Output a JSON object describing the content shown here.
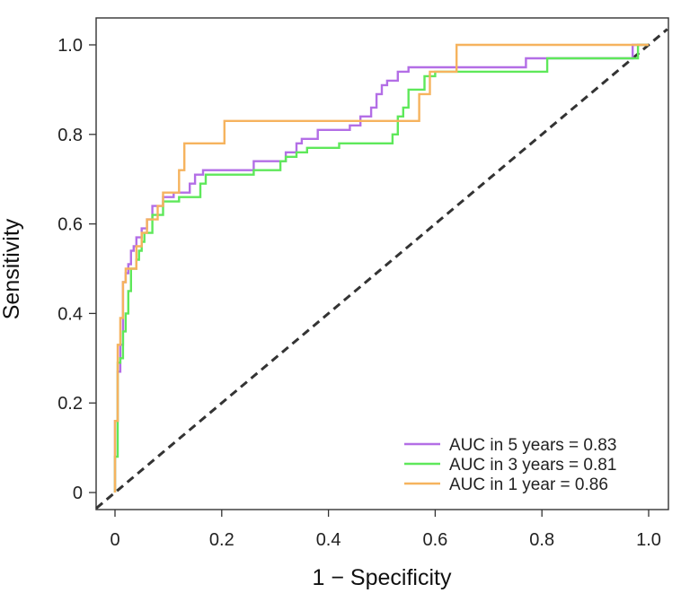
{
  "chart_data": {
    "type": "line",
    "title": "",
    "xlabel": "1 − Specificity",
    "ylabel": "Sensitivity",
    "xlim": [
      0,
      1
    ],
    "ylim": [
      0,
      1
    ],
    "xticks": [
      0,
      0.2,
      0.4,
      0.6,
      0.8,
      1.0
    ],
    "yticks": [
      0,
      0.2,
      0.4,
      0.6,
      0.8,
      1.0
    ],
    "xtick_labels": [
      "0",
      "0.2",
      "0.4",
      "0.6",
      "0.8",
      "1.0"
    ],
    "ytick_labels": [
      "0",
      "0.2",
      "0.4",
      "0.6",
      "0.8",
      "1.0"
    ],
    "grid": false,
    "legend_position": "bottom-right",
    "reference_line": {
      "x": [
        0,
        1
      ],
      "y": [
        0,
        1
      ],
      "style": "dashed",
      "color": "#333333"
    },
    "series": [
      {
        "name": "AUC in 5 years = 0.83",
        "color": "#b36ee6",
        "x": [
          0,
          0,
          0.005,
          0.005,
          0.01,
          0.01,
          0.015,
          0.015,
          0.02,
          0.02,
          0.025,
          0.025,
          0.03,
          0.03,
          0.035,
          0.035,
          0.04,
          0.04,
          0.05,
          0.05,
          0.06,
          0.06,
          0.07,
          0.07,
          0.09,
          0.09,
          0.11,
          0.11,
          0.14,
          0.14,
          0.15,
          0.15,
          0.165,
          0.165,
          0.26,
          0.26,
          0.32,
          0.32,
          0.34,
          0.34,
          0.35,
          0.35,
          0.38,
          0.38,
          0.44,
          0.44,
          0.46,
          0.46,
          0.48,
          0.48,
          0.49,
          0.49,
          0.5,
          0.5,
          0.51,
          0.51,
          0.53,
          0.53,
          0.55,
          0.55,
          0.57,
          0.57,
          0.6,
          0.6,
          0.77,
          0.77,
          0.97,
          0.97,
          1.0
        ],
        "y": [
          0,
          0.16,
          0.16,
          0.27,
          0.27,
          0.33,
          0.33,
          0.47,
          0.47,
          0.49,
          0.49,
          0.51,
          0.51,
          0.54,
          0.54,
          0.55,
          0.55,
          0.57,
          0.57,
          0.59,
          0.59,
          0.61,
          0.61,
          0.64,
          0.64,
          0.66,
          0.66,
          0.67,
          0.67,
          0.69,
          0.69,
          0.71,
          0.71,
          0.72,
          0.72,
          0.74,
          0.74,
          0.76,
          0.76,
          0.78,
          0.78,
          0.79,
          0.79,
          0.81,
          0.81,
          0.82,
          0.82,
          0.84,
          0.84,
          0.86,
          0.86,
          0.89,
          0.89,
          0.91,
          0.91,
          0.92,
          0.92,
          0.94,
          0.94,
          0.95,
          0.95,
          0.95,
          0.95,
          0.95,
          0.95,
          0.97,
          0.97,
          1.0,
          1.0
        ]
      },
      {
        "name": "AUC in 3 years = 0.81",
        "color": "#5ee85a",
        "x": [
          0,
          0,
          0.005,
          0.005,
          0.01,
          0.01,
          0.015,
          0.015,
          0.02,
          0.02,
          0.025,
          0.025,
          0.03,
          0.03,
          0.04,
          0.04,
          0.045,
          0.045,
          0.05,
          0.05,
          0.055,
          0.055,
          0.07,
          0.07,
          0.09,
          0.09,
          0.12,
          0.12,
          0.16,
          0.16,
          0.17,
          0.17,
          0.26,
          0.26,
          0.31,
          0.31,
          0.32,
          0.32,
          0.34,
          0.34,
          0.36,
          0.36,
          0.42,
          0.42,
          0.52,
          0.52,
          0.53,
          0.53,
          0.54,
          0.54,
          0.55,
          0.55,
          0.58,
          0.58,
          0.6,
          0.6,
          0.81,
          0.81,
          0.98,
          0.98,
          1.0
        ],
        "y": [
          0,
          0.08,
          0.08,
          0.29,
          0.29,
          0.3,
          0.3,
          0.36,
          0.36,
          0.4,
          0.4,
          0.45,
          0.45,
          0.5,
          0.5,
          0.52,
          0.52,
          0.54,
          0.54,
          0.56,
          0.56,
          0.58,
          0.58,
          0.62,
          0.62,
          0.65,
          0.65,
          0.66,
          0.66,
          0.69,
          0.69,
          0.71,
          0.71,
          0.72,
          0.72,
          0.74,
          0.74,
          0.75,
          0.75,
          0.76,
          0.76,
          0.77,
          0.77,
          0.78,
          0.78,
          0.8,
          0.8,
          0.84,
          0.84,
          0.86,
          0.86,
          0.9,
          0.9,
          0.93,
          0.93,
          0.94,
          0.94,
          0.97,
          0.97,
          1.0,
          1.0
        ]
      },
      {
        "name": "AUC in 1 year = 0.86",
        "color": "#f6b35e",
        "x": [
          0,
          0,
          0.005,
          0.005,
          0.01,
          0.01,
          0.015,
          0.015,
          0.02,
          0.02,
          0.04,
          0.04,
          0.05,
          0.05,
          0.06,
          0.06,
          0.08,
          0.08,
          0.09,
          0.09,
          0.12,
          0.12,
          0.13,
          0.13,
          0.205,
          0.205,
          0.52,
          0.52,
          0.57,
          0.57,
          0.59,
          0.59,
          0.64,
          0.64,
          0.97,
          0.97,
          1.0
        ],
        "y": [
          0,
          0.16,
          0.16,
          0.33,
          0.33,
          0.39,
          0.39,
          0.47,
          0.47,
          0.5,
          0.5,
          0.55,
          0.55,
          0.58,
          0.58,
          0.61,
          0.61,
          0.64,
          0.64,
          0.67,
          0.67,
          0.72,
          0.72,
          0.78,
          0.78,
          0.83,
          0.83,
          0.83,
          0.83,
          0.89,
          0.89,
          0.94,
          0.94,
          1.0,
          1.0,
          1.0,
          1.0
        ]
      }
    ]
  }
}
